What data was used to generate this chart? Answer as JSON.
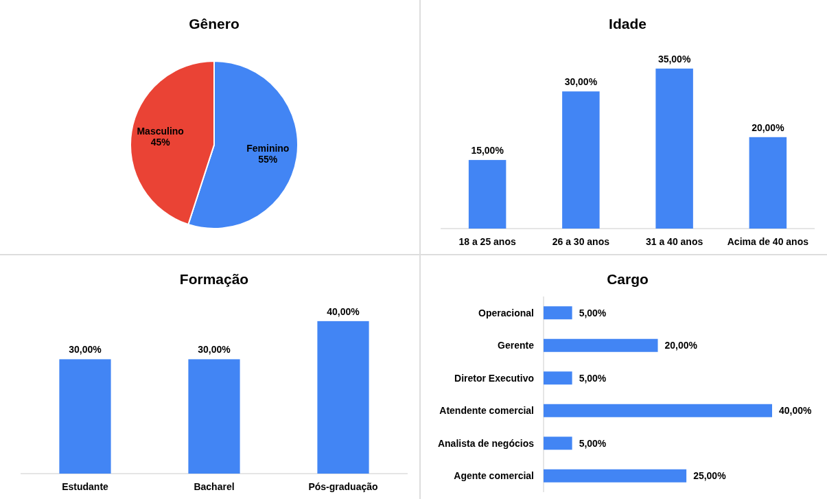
{
  "chart_data": [
    {
      "type": "pie",
      "title": "Gênero",
      "categories": [
        "Feminino",
        "Masculino"
      ],
      "values": [
        55,
        45
      ],
      "colors": [
        "#4285f4",
        "#ea4335"
      ],
      "value_labels": [
        "55%",
        "45%"
      ]
    },
    {
      "type": "bar",
      "title": "Idade",
      "categories": [
        "18 a 25 anos",
        "26 a 30 anos",
        "31 a 40 anos",
        "Acima de 40 anos"
      ],
      "values": [
        15,
        30,
        35,
        20
      ],
      "color": "#4285f4",
      "value_labels": [
        "15,00%",
        "30,00%",
        "35,00%",
        "20,00%"
      ]
    },
    {
      "type": "bar",
      "title": "Formação",
      "categories": [
        "Estudante",
        "Bacharel",
        "Pós-graduação"
      ],
      "values": [
        30,
        30,
        40
      ],
      "color": "#4285f4",
      "value_labels": [
        "30,00%",
        "30,00%",
        "40,00%"
      ]
    },
    {
      "type": "bar",
      "orientation": "horizontal",
      "title": "Cargo",
      "categories": [
        "Operacional",
        "Gerente",
        "Diretor Executivo",
        "Atendente comercial",
        "Analista de negócios",
        "Agente comercial"
      ],
      "values": [
        5,
        20,
        5,
        40,
        5,
        25
      ],
      "color": "#4285f4",
      "value_labels": [
        "5,00%",
        "20,00%",
        "5,00%",
        "40,00%",
        "5,00%",
        "25,00%"
      ]
    }
  ]
}
